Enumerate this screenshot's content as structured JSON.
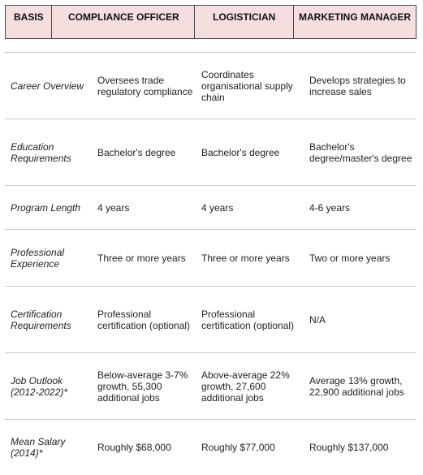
{
  "headers": [
    "BASIS",
    "COMPLIANCE OFFICER",
    "LOGISTICIAN",
    "MARKETING MANAGER"
  ],
  "rows": [
    {
      "label": "Career Overview",
      "cells": [
        "Oversees trade regulatory compliance",
        "Coordinates organisational supply chain",
        "Develops strategies to increase sales"
      ]
    },
    {
      "label": "Education Requirements",
      "cells": [
        "Bachelor's degree",
        "Bachelor's degree",
        "Bachelor's degree/master's degree"
      ]
    },
    {
      "label": "Program Length",
      "cells": [
        "4 years",
        "4 years",
        "4-6 years"
      ]
    },
    {
      "label": "Professional Experience",
      "cells": [
        "Three or more years",
        "Three or more years",
        "Two or more years"
      ]
    },
    {
      "label": "Certification Requirements",
      "cells": [
        "Professional certification (optional)",
        "Professional certification (optional)",
        "N/A"
      ]
    },
    {
      "label": "Job Outlook (2012-2022)*",
      "cells": [
        "Below-average 3-7% growth, 55,300 additional jobs",
        "Above-average 22% growth, 27,600 additional jobs",
        "Average 13% growth, 22,900 additional jobs"
      ]
    },
    {
      "label": "Mean Salary (2014)*",
      "cells": [
        "Roughly $68,000",
        "Roughly $77,000",
        "Roughly $137,000"
      ]
    }
  ]
}
